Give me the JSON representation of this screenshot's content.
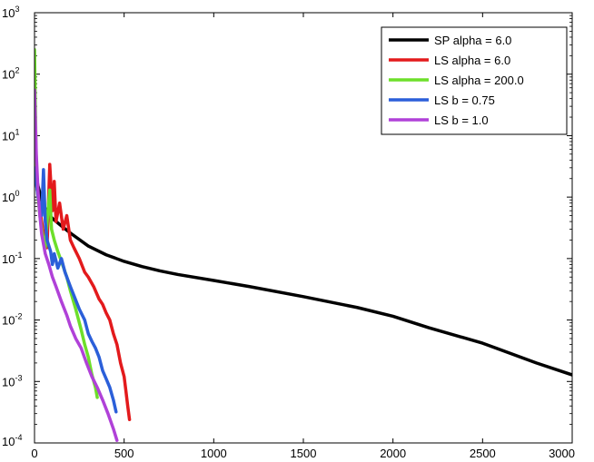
{
  "chart_data": {
    "type": "line",
    "title": "",
    "xlabel": "",
    "ylabel": "",
    "x_scale": "linear",
    "y_scale": "log",
    "xlim": [
      0,
      3000
    ],
    "ylim": [
      0.0001,
      1000
    ],
    "x_ticks": [
      0,
      500,
      1000,
      1500,
      2000,
      2500,
      3000
    ],
    "y_ticks": [
      {
        "value": 0.0001,
        "base": "10",
        "exp": "-4"
      },
      {
        "value": 0.001,
        "base": "10",
        "exp": "-3"
      },
      {
        "value": 0.01,
        "base": "10",
        "exp": "-2"
      },
      {
        "value": 0.1,
        "base": "10",
        "exp": "-1"
      },
      {
        "value": 1,
        "base": "10",
        "exp": "0"
      },
      {
        "value": 10,
        "base": "10",
        "exp": "1"
      },
      {
        "value": 100,
        "base": "10",
        "exp": "2"
      },
      {
        "value": 1000,
        "base": "10",
        "exp": "3"
      }
    ],
    "grid": false,
    "legend_position": "top-right",
    "series": [
      {
        "name": "SP alpha = 6.0",
        "color": "#000000",
        "points": [
          [
            0,
            3.0
          ],
          [
            20,
            1.5
          ],
          [
            40,
            0.9
          ],
          [
            60,
            0.65
          ],
          [
            80,
            0.52
          ],
          [
            100,
            0.45
          ],
          [
            150,
            0.34
          ],
          [
            200,
            0.26
          ],
          [
            300,
            0.16
          ],
          [
            400,
            0.115
          ],
          [
            500,
            0.09
          ],
          [
            600,
            0.074
          ],
          [
            700,
            0.063
          ],
          [
            800,
            0.055
          ],
          [
            1000,
            0.044
          ],
          [
            1200,
            0.035
          ],
          [
            1500,
            0.024
          ],
          [
            1800,
            0.016
          ],
          [
            2000,
            0.0115
          ],
          [
            2200,
            0.0075
          ],
          [
            2500,
            0.0042
          ],
          [
            2800,
            0.002
          ],
          [
            3000,
            0.00128
          ]
        ]
      },
      {
        "name": "LS alpha = 6.0",
        "color": "#e31a1c",
        "points": [
          [
            0,
            3.0
          ],
          [
            20,
            1.0
          ],
          [
            50,
            0.25
          ],
          [
            70,
            0.15
          ],
          [
            80,
            1.2
          ],
          [
            85,
            3.4
          ],
          [
            100,
            0.6
          ],
          [
            110,
            1.8
          ],
          [
            120,
            0.4
          ],
          [
            140,
            0.8
          ],
          [
            160,
            0.3
          ],
          [
            180,
            0.5
          ],
          [
            200,
            0.2
          ],
          [
            220,
            0.15
          ],
          [
            250,
            0.1
          ],
          [
            280,
            0.06
          ],
          [
            300,
            0.05
          ],
          [
            330,
            0.035
          ],
          [
            360,
            0.022
          ],
          [
            380,
            0.018
          ],
          [
            400,
            0.013
          ],
          [
            420,
            0.01
          ],
          [
            440,
            0.006
          ],
          [
            460,
            0.004
          ],
          [
            480,
            0.002
          ],
          [
            500,
            0.0012
          ],
          [
            510,
            0.0007
          ],
          [
            520,
            0.0004
          ],
          [
            530,
            0.00024
          ]
        ]
      },
      {
        "name": "LS alpha = 200.0",
        "color": "#6ddf2a",
        "points": [
          [
            0,
            250
          ],
          [
            5,
            30
          ],
          [
            10,
            3
          ],
          [
            20,
            1.0
          ],
          [
            30,
            0.5
          ],
          [
            40,
            0.3
          ],
          [
            50,
            0.2
          ],
          [
            60,
            0.15
          ],
          [
            75,
            0.6
          ],
          [
            85,
            1.3
          ],
          [
            95,
            0.3
          ],
          [
            110,
            0.2
          ],
          [
            130,
            0.13
          ],
          [
            150,
            0.09
          ],
          [
            180,
            0.05
          ],
          [
            200,
            0.03
          ],
          [
            230,
            0.015
          ],
          [
            260,
            0.007
          ],
          [
            280,
            0.004
          ],
          [
            300,
            0.0025
          ],
          [
            320,
            0.0013
          ],
          [
            340,
            0.0008
          ],
          [
            350,
            0.00055
          ]
        ]
      },
      {
        "name": "LS b = 0.75",
        "color": "#2b5fd9",
        "points": [
          [
            0,
            3.0
          ],
          [
            20,
            1.0
          ],
          [
            40,
            0.5
          ],
          [
            50,
            2.8
          ],
          [
            60,
            0.4
          ],
          [
            70,
            0.2
          ],
          [
            90,
            0.13
          ],
          [
            100,
            0.08
          ],
          [
            110,
            0.12
          ],
          [
            130,
            0.07
          ],
          [
            150,
            0.1
          ],
          [
            170,
            0.06
          ],
          [
            200,
            0.035
          ],
          [
            220,
            0.025
          ],
          [
            250,
            0.015
          ],
          [
            280,
            0.01
          ],
          [
            300,
            0.006
          ],
          [
            320,
            0.0045
          ],
          [
            340,
            0.0035
          ],
          [
            360,
            0.0025
          ],
          [
            380,
            0.0015
          ],
          [
            400,
            0.0011
          ],
          [
            420,
            0.0008
          ],
          [
            440,
            0.0005
          ],
          [
            455,
            0.00032
          ]
        ]
      },
      {
        "name": "LS b = 1.0",
        "color": "#b041d8",
        "points": [
          [
            0,
            55
          ],
          [
            10,
            5
          ],
          [
            20,
            1.2
          ],
          [
            30,
            0.5
          ],
          [
            40,
            0.25
          ],
          [
            60,
            0.12
          ],
          [
            80,
            0.08
          ],
          [
            100,
            0.05
          ],
          [
            120,
            0.035
          ],
          [
            150,
            0.02
          ],
          [
            180,
            0.012
          ],
          [
            200,
            0.008
          ],
          [
            230,
            0.005
          ],
          [
            260,
            0.0035
          ],
          [
            290,
            0.002
          ],
          [
            320,
            0.0012
          ],
          [
            350,
            0.0008
          ],
          [
            380,
            0.0005
          ],
          [
            410,
            0.0003
          ],
          [
            440,
            0.00017
          ],
          [
            460,
            0.00011
          ]
        ]
      }
    ]
  }
}
